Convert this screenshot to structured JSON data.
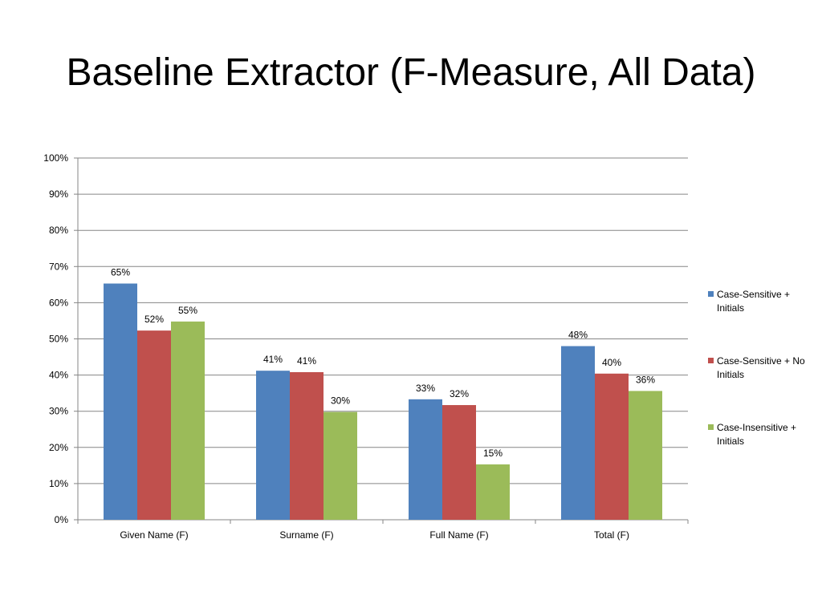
{
  "slide": {
    "title": "Baseline Extractor (F-Measure, All Data)"
  },
  "chart_data": {
    "type": "bar",
    "title": "",
    "xlabel": "",
    "ylabel": "",
    "categories": [
      "Given Name (F)",
      "Surname (F)",
      "Full Name (F)",
      "Total (F)"
    ],
    "series": [
      {
        "name": "Case-Sensitive + Initials",
        "legend_lines": [
          "Case-Sensitive +",
          "Initials"
        ],
        "color": "#4F81BD",
        "values": [
          65.3,
          41.2,
          33.3,
          48.0
        ],
        "labels": [
          "65%",
          "41%",
          "33%",
          "48%"
        ]
      },
      {
        "name": "Case-Sensitive + No Initials",
        "legend_lines": [
          "Case-Sensitive + No",
          "Initials"
        ],
        "color": "#C0504D",
        "values": [
          52.3,
          40.8,
          31.7,
          40.4
        ],
        "labels": [
          "52%",
          "41%",
          "32%",
          "40%"
        ]
      },
      {
        "name": "Case-Insensitive + Initials",
        "legend_lines": [
          "Case-Insensitive +",
          "Initials"
        ],
        "color": "#9BBB59",
        "values": [
          54.8,
          29.8,
          15.3,
          35.6
        ],
        "labels": [
          "55%",
          "30%",
          "15%",
          "36%"
        ]
      }
    ],
    "ylim": [
      0,
      100
    ],
    "yticks": [
      0,
      10,
      20,
      30,
      40,
      50,
      60,
      70,
      80,
      90,
      100
    ],
    "ytick_labels": [
      "0%",
      "10%",
      "20%",
      "30%",
      "40%",
      "50%",
      "60%",
      "70%",
      "80%",
      "90%",
      "100%"
    ],
    "grid": true,
    "legend_position": "right"
  }
}
